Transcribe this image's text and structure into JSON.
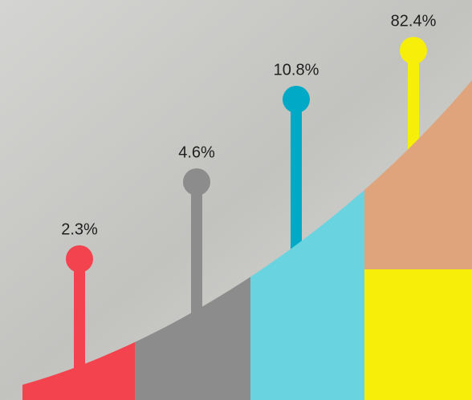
{
  "items": [
    {
      "label": "2.3%",
      "pin_color": "#f2434f",
      "area_color": "#f2434f"
    },
    {
      "label": "4.6%",
      "pin_color": "#8c8c8c",
      "area_color": "#8c8c8c"
    },
    {
      "label": "10.8%",
      "pin_color": "#00a9c6",
      "area_color": "#69d3df"
    },
    {
      "label": "82.4%",
      "pin_color": "#f7ef0a",
      "area_color": "#dfa47c"
    }
  ]
}
